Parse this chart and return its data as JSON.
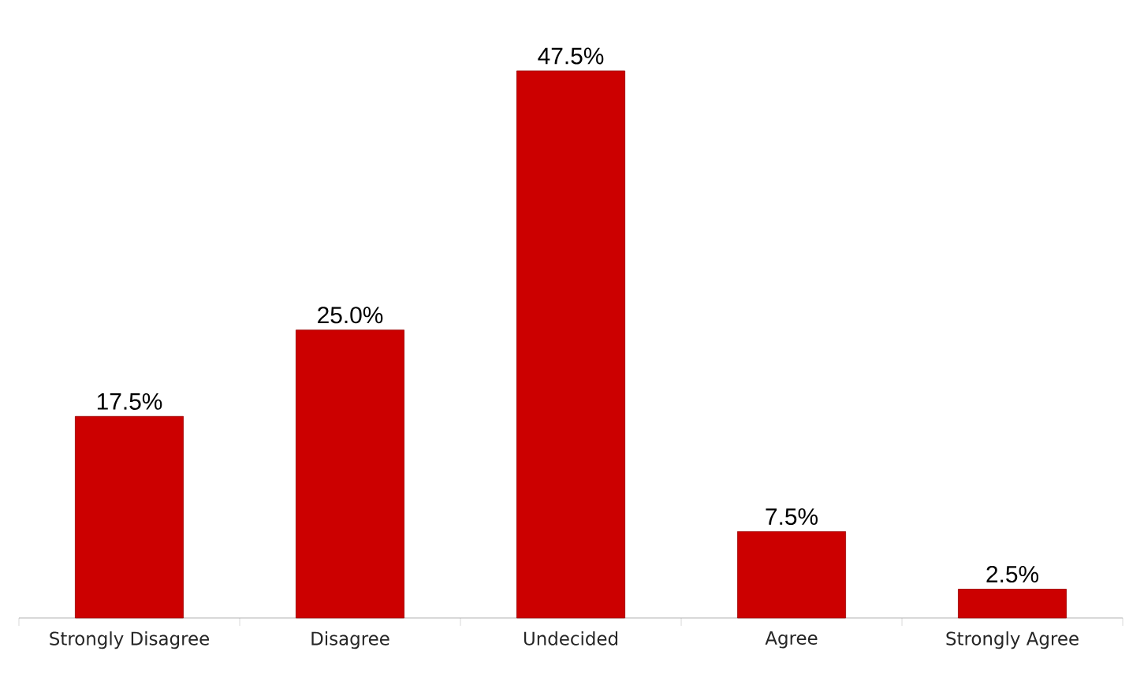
{
  "chart_data": {
    "type": "bar",
    "categories": [
      "Strongly Disagree",
      "Disagree",
      "Undecided",
      "Agree",
      "Strongly Agree"
    ],
    "values": [
      17.5,
      25.0,
      47.5,
      7.5,
      2.5
    ],
    "value_labels": [
      "17.5%",
      "25.0%",
      "47.5%",
      "7.5%",
      "2.5%"
    ],
    "color": "#cc0000"
  }
}
